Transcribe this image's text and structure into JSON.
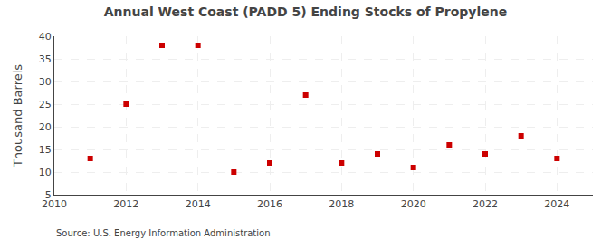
{
  "chart_data": {
    "type": "scatter",
    "title": "Annual West Coast (PADD 5) Ending Stocks of Propylene",
    "y_label": "Thousand Barrels",
    "annotations": [
      "Source: U.S. Energy Information Administration"
    ],
    "x": [
      2011,
      2012,
      2013,
      2014,
      2015,
      2016,
      2017,
      2018,
      2019,
      2020,
      2021,
      2022,
      2023,
      2024
    ],
    "values": [
      13,
      25,
      38,
      38,
      10,
      12,
      27,
      12,
      14,
      11,
      16,
      14,
      18,
      13
    ],
    "color": "#cc0000",
    "marker": "square",
    "xlim": [
      2010,
      2025
    ],
    "xticks": [
      2010,
      2012,
      2014,
      2016,
      2018,
      2020,
      2022,
      2024
    ],
    "ylim": [
      5,
      40
    ],
    "yticks": [
      5,
      10,
      15,
      20,
      25,
      30,
      35,
      40
    ],
    "grid": true
  }
}
